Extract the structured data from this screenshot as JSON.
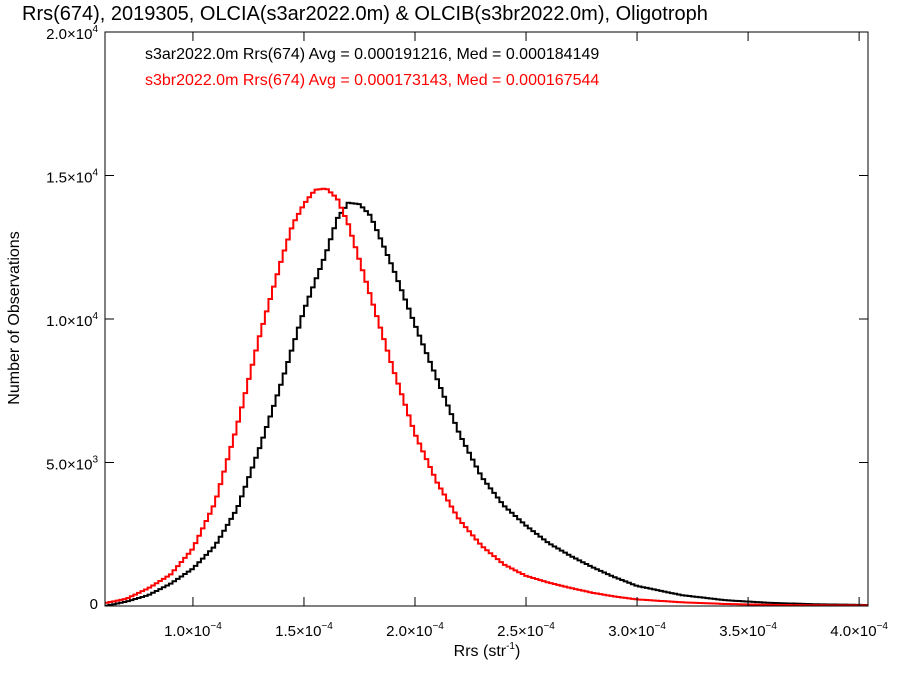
{
  "chart_data": {
    "type": "line",
    "title": "Rrs(674), 2019305, OLCIA(s3ar2022.0m) & OLCIB(s3br2022.0m), Oligotroph",
    "xlabel": "Rrs (str",
    "xlabel_sup": "-1",
    "xlabel_suffix": ")",
    "ylabel": "Number of Observations",
    "xlim": [
      6.04e-05,
      0.000404
    ],
    "ylim": [
      0,
      20000
    ],
    "grid": false,
    "step_histogram": true,
    "x_ticks": [
      {
        "value": 0.0001,
        "mantissa": "1.0×10",
        "exp": "−4"
      },
      {
        "value": 0.00015,
        "mantissa": "1.5×10",
        "exp": "−4"
      },
      {
        "value": 0.0002,
        "mantissa": "2.0×10",
        "exp": "−4"
      },
      {
        "value": 0.00025,
        "mantissa": "2.5×10",
        "exp": "−4"
      },
      {
        "value": 0.0003,
        "mantissa": "3.0×10",
        "exp": "−4"
      },
      {
        "value": 0.00035,
        "mantissa": "3.5×10",
        "exp": "−4"
      },
      {
        "value": 0.0004,
        "mantissa": "4.0×10",
        "exp": "−4"
      }
    ],
    "y_ticks": [
      {
        "value": 0,
        "mantissa": "0",
        "exp": ""
      },
      {
        "value": 5000,
        "mantissa": "5.0×10",
        "exp": "3"
      },
      {
        "value": 10000,
        "mantissa": "1.0×10",
        "exp": "4"
      },
      {
        "value": 15000,
        "mantissa": "1.5×10",
        "exp": "4"
      },
      {
        "value": 20000,
        "mantissa": "2.0×10",
        "exp": "4"
      }
    ],
    "annotations": [
      {
        "text": "s3ar2022.0m Rrs(674) Avg = 0.000191216, Med = 0.000184149",
        "color": "#000000"
      },
      {
        "text": "s3br2022.0m Rrs(674) Avg = 0.000173143, Med = 0.000167544",
        "color": "#ff0000"
      }
    ],
    "series": [
      {
        "color": "#000000",
        "x": [
          6.04e-05,
          7e-05,
          8e-05,
          9e-05,
          0.0001,
          0.00011,
          0.00012,
          0.00013,
          0.00014,
          0.00015,
          0.00016,
          0.000165,
          0.00017,
          0.000175,
          0.00018,
          0.000185,
          0.00019,
          0.0002,
          0.00021,
          0.00022,
          0.00023,
          0.00024,
          0.00025,
          0.00026,
          0.00027,
          0.00028,
          0.00029,
          0.0003,
          0.00032,
          0.00034,
          0.00036,
          0.00038,
          0.0004,
          0.000404
        ],
        "y": [
          0,
          150,
          380,
          780,
          1300,
          2100,
          3400,
          5500,
          7800,
          10300,
          12300,
          13500,
          14050,
          14000,
          13600,
          12700,
          11800,
          9800,
          7900,
          6000,
          4500,
          3500,
          2800,
          2200,
          1750,
          1350,
          1000,
          700,
          380,
          200,
          110,
          60,
          40,
          30
        ]
      },
      {
        "color": "#ff0000",
        "x": [
          6.04e-05,
          7e-05,
          8e-05,
          9e-05,
          0.0001,
          0.00011,
          0.00012,
          0.00013,
          0.00014,
          0.000145,
          0.00015,
          0.000155,
          0.00016,
          0.000165,
          0.00017,
          0.00018,
          0.00019,
          0.0002,
          0.00021,
          0.00022,
          0.00023,
          0.00024,
          0.00025,
          0.00026,
          0.00027,
          0.00028,
          0.00029,
          0.0003,
          0.00032,
          0.00034,
          0.00036,
          0.00038,
          0.0004,
          0.000404
        ],
        "y": [
          100,
          250,
          620,
          1100,
          2000,
          3600,
          6300,
          9400,
          12100,
          13300,
          14000,
          14500,
          14550,
          14200,
          13300,
          10800,
          8300,
          6000,
          4300,
          3000,
          2100,
          1450,
          1050,
          820,
          630,
          460,
          330,
          230,
          130,
          70,
          40,
          25,
          20,
          20
        ]
      }
    ]
  }
}
